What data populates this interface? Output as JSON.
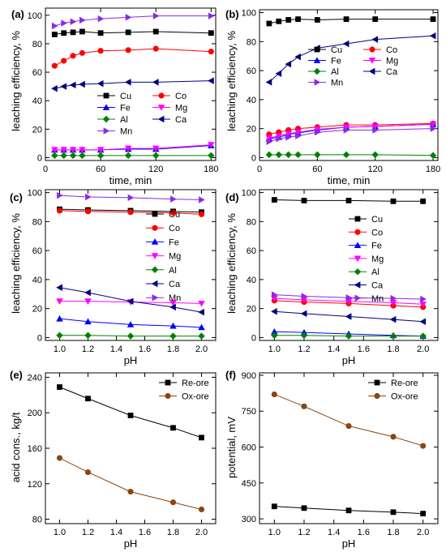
{
  "chart_data": [
    {
      "panel": "(a)",
      "type": "line",
      "xlabel": "time, min",
      "ylabel": "leaching efficiency, %",
      "xlim": [
        0,
        185
      ],
      "ylim": [
        -2,
        105
      ],
      "xticks": [
        0,
        60,
        120,
        180
      ],
      "yticks": [
        0,
        20,
        40,
        60,
        80,
        100
      ],
      "legend_cols": 2,
      "series": [
        {
          "name": "Cu",
          "color": "#000000",
          "marker": "square",
          "x": [
            10,
            20,
            30,
            40,
            60,
            90,
            120,
            180
          ],
          "y": [
            86.5,
            87.5,
            88,
            88.5,
            87.5,
            88,
            88.5,
            87.5
          ]
        },
        {
          "name": "Co",
          "color": "#ff0000",
          "marker": "circle",
          "x": [
            10,
            20,
            30,
            40,
            60,
            90,
            120,
            180
          ],
          "y": [
            64.5,
            68,
            71.5,
            73.5,
            75,
            75.5,
            76.5,
            74.5
          ]
        },
        {
          "name": "Fe",
          "color": "#0000ff",
          "marker": "triangle-up",
          "x": [
            10,
            20,
            30,
            40,
            60,
            90,
            120,
            180
          ],
          "y": [
            5.5,
            5.5,
            5.5,
            5.5,
            5.5,
            6,
            6,
            8.5
          ]
        },
        {
          "name": "Mg",
          "color": "#ff00ff",
          "marker": "triangle-down",
          "x": [
            10,
            20,
            30,
            40,
            60,
            90,
            120,
            180
          ],
          "y": [
            5.5,
            5.5,
            5.5,
            5.5,
            5.5,
            6.5,
            6.5,
            9
          ]
        },
        {
          "name": "Al",
          "color": "#008000",
          "marker": "diamond",
          "x": [
            10,
            20,
            30,
            40,
            60,
            90,
            120,
            180
          ],
          "y": [
            1.5,
            1.5,
            1.5,
            1.5,
            1.5,
            1.5,
            1.5,
            1.5
          ]
        },
        {
          "name": "Ca",
          "color": "#000080",
          "marker": "triangle-left",
          "x": [
            10,
            20,
            30,
            40,
            60,
            90,
            120,
            180
          ],
          "y": [
            48.5,
            50,
            51,
            51.5,
            52,
            53,
            53,
            54
          ]
        },
        {
          "name": "Mn",
          "color": "#8a2be2",
          "marker": "triangle-right",
          "x": [
            10,
            20,
            30,
            40,
            60,
            90,
            120,
            180
          ],
          "y": [
            92.5,
            94.5,
            95.5,
            96.5,
            97.5,
            98.5,
            99.5,
            99.5
          ]
        }
      ]
    },
    {
      "panel": "(b)",
      "type": "line",
      "xlabel": "time, min",
      "ylabel": "leaching efficiency, %",
      "xlim": [
        0,
        185
      ],
      "ylim": [
        -2,
        102
      ],
      "xticks": [
        0,
        60,
        120,
        180
      ],
      "yticks": [
        0,
        20,
        40,
        60,
        80,
        100
      ],
      "legend_cols": 2,
      "series": [
        {
          "name": "Cu",
          "color": "#000000",
          "marker": "square",
          "x": [
            10,
            20,
            30,
            40,
            60,
            90,
            120,
            180
          ],
          "y": [
            92.5,
            94,
            95,
            95.5,
            95,
            95.5,
            95.5,
            95.5
          ]
        },
        {
          "name": "Co",
          "color": "#ff0000",
          "marker": "circle",
          "x": [
            10,
            20,
            30,
            40,
            60,
            90,
            120,
            180
          ],
          "y": [
            16,
            17.5,
            19,
            20,
            21,
            22.5,
            22.5,
            23.5
          ]
        },
        {
          "name": "Fe",
          "color": "#0000ff",
          "marker": "triangle-up",
          "x": [
            10,
            20,
            30,
            40,
            60,
            90,
            120,
            180
          ],
          "y": [
            13,
            14,
            16,
            17,
            19,
            21,
            21.5,
            23
          ]
        },
        {
          "name": "Mg",
          "color": "#ff00ff",
          "marker": "triangle-down",
          "x": [
            10,
            20,
            30,
            40,
            60,
            90,
            120,
            180
          ],
          "y": [
            13.5,
            15,
            16.5,
            17.5,
            19.5,
            21,
            21.5,
            23
          ]
        },
        {
          "name": "Al",
          "color": "#008000",
          "marker": "diamond",
          "x": [
            10,
            20,
            30,
            40,
            60,
            90,
            120,
            180
          ],
          "y": [
            2,
            2,
            2,
            2,
            2,
            2,
            2,
            1.5
          ]
        },
        {
          "name": "Ca",
          "color": "#000080",
          "marker": "triangle-left",
          "x": [
            10,
            20,
            30,
            40,
            60,
            90,
            120,
            180
          ],
          "y": [
            52,
            58,
            64.5,
            69.5,
            75.5,
            78.5,
            81.5,
            84
          ]
        },
        {
          "name": "Mn",
          "color": "#8a2be2",
          "marker": "triangle-right",
          "x": [
            10,
            20,
            30,
            40,
            60,
            90,
            120,
            180
          ],
          "y": [
            11,
            13,
            14,
            15,
            17.5,
            19,
            19,
            20
          ]
        }
      ]
    },
    {
      "panel": "(c)",
      "type": "line",
      "xlabel": "pH",
      "ylabel": "leaching efficiency, %",
      "xlim": [
        0.9,
        2.1
      ],
      "ylim": [
        -2,
        102
      ],
      "xticks": [
        1.0,
        1.2,
        1.4,
        1.6,
        1.8,
        2.0
      ],
      "yticks": [
        0,
        20,
        40,
        60,
        80,
        100
      ],
      "legend_cols": 1,
      "series": [
        {
          "name": "Cu",
          "color": "#000000",
          "marker": "square",
          "x": [
            1.0,
            1.2,
            1.5,
            1.8,
            2.0
          ],
          "y": [
            88.5,
            88,
            87.5,
            87,
            86.5
          ]
        },
        {
          "name": "Co",
          "color": "#ff0000",
          "marker": "circle",
          "x": [
            1.0,
            1.2,
            1.5,
            1.8,
            2.0
          ],
          "y": [
            87.5,
            87,
            86.5,
            86,
            85
          ]
        },
        {
          "name": "Fe",
          "color": "#0000ff",
          "marker": "triangle-up",
          "x": [
            1.0,
            1.2,
            1.5,
            1.8,
            2.0
          ],
          "y": [
            13,
            11,
            9,
            8,
            7
          ]
        },
        {
          "name": "Mg",
          "color": "#ff00ff",
          "marker": "triangle-down",
          "x": [
            1.0,
            1.2,
            1.5,
            1.8,
            2.0
          ],
          "y": [
            25,
            25,
            24.5,
            24,
            23.5
          ]
        },
        {
          "name": "Al",
          "color": "#008000",
          "marker": "diamond",
          "x": [
            1.0,
            1.2,
            1.5,
            1.8,
            2.0
          ],
          "y": [
            1.5,
            1.5,
            1,
            1,
            1
          ]
        },
        {
          "name": "Ca",
          "color": "#000080",
          "marker": "triangle-left",
          "x": [
            1.0,
            1.2,
            1.5,
            1.8,
            2.0
          ],
          "y": [
            34.5,
            31,
            25,
            21,
            17.5
          ]
        },
        {
          "name": "Mn",
          "color": "#8a2be2",
          "marker": "triangle-right",
          "x": [
            1.0,
            1.2,
            1.5,
            1.8,
            2.0
          ],
          "y": [
            98,
            97,
            96.5,
            95.5,
            95
          ]
        }
      ]
    },
    {
      "panel": "(d)",
      "type": "line",
      "xlabel": "pH",
      "ylabel": "leaching efficiency, %",
      "xlim": [
        0.9,
        2.1
      ],
      "ylim": [
        -2,
        102
      ],
      "xticks": [
        1.0,
        1.2,
        1.4,
        1.6,
        1.8,
        2.0
      ],
      "yticks": [
        0,
        20,
        40,
        60,
        80,
        100
      ],
      "legend_cols": 1,
      "series": [
        {
          "name": "Cu",
          "color": "#000000",
          "marker": "square",
          "x": [
            1.0,
            1.2,
            1.5,
            1.8,
            2.0
          ],
          "y": [
            95,
            94.5,
            94.5,
            94,
            94
          ]
        },
        {
          "name": "Co",
          "color": "#ff0000",
          "marker": "circle",
          "x": [
            1.0,
            1.2,
            1.5,
            1.8,
            2.0
          ],
          "y": [
            25.5,
            24.5,
            23.5,
            22,
            21
          ]
        },
        {
          "name": "Fe",
          "color": "#0000ff",
          "marker": "triangle-up",
          "x": [
            1.0,
            1.2,
            1.5,
            1.8,
            2.0
          ],
          "y": [
            4,
            3.5,
            2.5,
            1.5,
            1
          ]
        },
        {
          "name": "Mg",
          "color": "#ff00ff",
          "marker": "triangle-down",
          "x": [
            1.0,
            1.2,
            1.5,
            1.8,
            2.0
          ],
          "y": [
            27,
            26,
            25,
            24,
            23
          ]
        },
        {
          "name": "Al",
          "color": "#008000",
          "marker": "diamond",
          "x": [
            1.0,
            1.2,
            1.5,
            1.8,
            2.0
          ],
          "y": [
            1.5,
            1.5,
            1,
            1,
            1
          ]
        },
        {
          "name": "Ca",
          "color": "#000080",
          "marker": "triangle-left",
          "x": [
            1.0,
            1.2,
            1.5,
            1.8,
            2.0
          ],
          "y": [
            18,
            16.5,
            14.5,
            12.5,
            11
          ]
        },
        {
          "name": "Mn",
          "color": "#8a2be2",
          "marker": "triangle-right",
          "x": [
            1.0,
            1.2,
            1.5,
            1.8,
            2.0
          ],
          "y": [
            29.5,
            28.5,
            27.5,
            27,
            26.5
          ]
        }
      ]
    },
    {
      "panel": "(e)",
      "type": "line",
      "xlabel": "pH",
      "ylabel": "acid cons., kg/t",
      "xlim": [
        0.9,
        2.1
      ],
      "ylim": [
        75,
        245
      ],
      "xticks": [
        1.0,
        1.2,
        1.4,
        1.6,
        1.8,
        2.0
      ],
      "yticks": [
        80,
        120,
        160,
        200,
        240
      ],
      "legend_cols": 1,
      "series": [
        {
          "name": "Re-ore",
          "color": "#000000",
          "marker": "square",
          "x": [
            1.0,
            1.2,
            1.5,
            1.8,
            2.0
          ],
          "y": [
            229,
            216,
            197,
            183,
            172
          ]
        },
        {
          "name": "Ox-ore",
          "color": "#8b4513",
          "marker": "circle",
          "x": [
            1.0,
            1.2,
            1.5,
            1.8,
            2.0
          ],
          "y": [
            149,
            133,
            111,
            99,
            91
          ]
        }
      ]
    },
    {
      "panel": "(f)",
      "type": "line",
      "xlabel": "pH",
      "ylabel": "potential, mV",
      "xlim": [
        0.9,
        2.1
      ],
      "ylim": [
        280,
        910
      ],
      "xticks": [
        1.0,
        1.2,
        1.4,
        1.6,
        1.8,
        2.0
      ],
      "yticks": [
        300,
        450,
        600,
        750,
        900
      ],
      "legend_cols": 1,
      "series": [
        {
          "name": "Re-ore",
          "color": "#000000",
          "marker": "square",
          "x": [
            1.0,
            1.2,
            1.5,
            1.8,
            2.0
          ],
          "y": [
            352,
            345,
            335,
            328,
            322
          ]
        },
        {
          "name": "Ox-ore",
          "color": "#8b4513",
          "marker": "circle",
          "x": [
            1.0,
            1.2,
            1.5,
            1.8,
            2.0
          ],
          "y": [
            820,
            770,
            688,
            643,
            605
          ]
        }
      ]
    }
  ]
}
